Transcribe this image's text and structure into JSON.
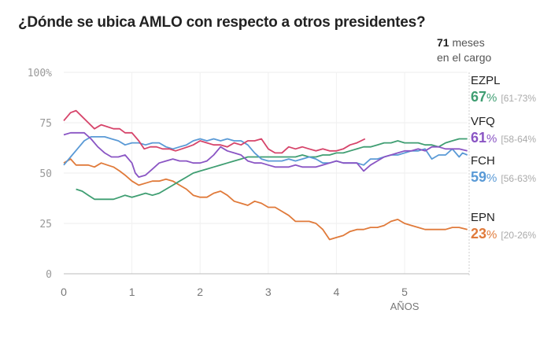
{
  "header": {
    "title": "¿Dónde se ubica AMLO con respecto a otros presidentes?",
    "months_value": "71",
    "months_label_1": "meses",
    "months_label_2": "en el cargo"
  },
  "colors": {
    "EZPL": "#3f9e72",
    "VFQ": "#8a55c4",
    "FCH": "#5a9ad6",
    "EPN": "#e07a3a",
    "AMLO": "#d6446a"
  },
  "legend": [
    {
      "name": "EZPL",
      "value": "67",
      "pct": "%",
      "range": "[61-73%"
    },
    {
      "name": "VFQ",
      "value": "61",
      "pct": "%",
      "range": "[58-64%"
    },
    {
      "name": "FCH",
      "value": "59",
      "pct": "%",
      "range": "[56-63%"
    },
    {
      "name": "EPN",
      "value": "23",
      "pct": "%",
      "range": "[20-26%"
    }
  ],
  "chart_data": {
    "type": "line",
    "title": "¿Dónde se ubica AMLO con respecto a otros presidentes?",
    "xlabel": "AÑOS",
    "ylabel": "",
    "xlim": [
      0,
      5.92
    ],
    "ylim": [
      0,
      100
    ],
    "x_ticks": [
      "0",
      "1",
      "2",
      "3",
      "4",
      "5"
    ],
    "y_ticks": [
      "0",
      "25",
      "50",
      "75",
      "100%"
    ],
    "y_tick_values": [
      0,
      25,
      50,
      75,
      100
    ],
    "grid": true,
    "legend_position": "right",
    "series": [
      {
        "name": "AMLO",
        "key": "AMLO",
        "x": [
          0,
          0.1,
          0.18,
          0.27,
          0.36,
          0.45,
          0.55,
          0.64,
          0.73,
          0.82,
          0.9,
          1.0,
          1.1,
          1.18,
          1.27,
          1.36,
          1.45,
          1.55,
          1.64,
          1.73,
          1.82,
          1.9,
          2.0,
          2.1,
          2.2,
          2.3,
          2.4,
          2.5,
          2.6,
          2.7,
          2.8,
          2.9,
          3.0,
          3.1,
          3.2,
          3.3,
          3.4,
          3.5,
          3.6,
          3.7,
          3.8,
          3.9,
          4.0,
          4.1,
          4.2,
          4.3,
          4.42
        ],
        "y": [
          76,
          80,
          81,
          78,
          75,
          72,
          74,
          73,
          72,
          72,
          70,
          70,
          66,
          62,
          63,
          63,
          62,
          62,
          61,
          62,
          63,
          64,
          66,
          65,
          64,
          64,
          63,
          65,
          64,
          66,
          66,
          67,
          62,
          60,
          60,
          63,
          62,
          63,
          62,
          61,
          62,
          61,
          61,
          62,
          64,
          65,
          67
        ]
      },
      {
        "name": "VFQ",
        "key": "VFQ",
        "x": [
          0,
          0.1,
          0.2,
          0.3,
          0.4,
          0.5,
          0.6,
          0.7,
          0.8,
          0.9,
          1.0,
          1.05,
          1.1,
          1.2,
          1.3,
          1.4,
          1.5,
          1.6,
          1.7,
          1.8,
          1.9,
          2.0,
          2.1,
          2.2,
          2.3,
          2.4,
          2.5,
          2.6,
          2.7,
          2.8,
          2.9,
          3.0,
          3.1,
          3.2,
          3.3,
          3.4,
          3.5,
          3.6,
          3.7,
          3.8,
          3.9,
          4.0,
          4.1,
          4.2,
          4.3,
          4.4,
          4.5,
          4.6,
          4.7,
          4.8,
          4.9,
          5.0,
          5.1,
          5.2,
          5.3,
          5.4,
          5.5,
          5.6,
          5.7,
          5.8,
          5.92
        ],
        "y": [
          69,
          70,
          70,
          70,
          67,
          63,
          60,
          58,
          58,
          59,
          55,
          50,
          48,
          49,
          52,
          55,
          56,
          57,
          56,
          56,
          55,
          55,
          56,
          59,
          63,
          61,
          60,
          59,
          56,
          55,
          55,
          54,
          53,
          53,
          53,
          54,
          53,
          53,
          53,
          54,
          55,
          56,
          55,
          55,
          55,
          51,
          54,
          56,
          58,
          59,
          60,
          61,
          61,
          62,
          61,
          63,
          63,
          62,
          62,
          62,
          61
        ]
      },
      {
        "name": "FCH",
        "key": "FCH",
        "x": [
          0,
          0.1,
          0.2,
          0.3,
          0.4,
          0.5,
          0.6,
          0.7,
          0.8,
          0.9,
          1.0,
          1.1,
          1.2,
          1.3,
          1.4,
          1.5,
          1.6,
          1.7,
          1.8,
          1.9,
          2.0,
          2.1,
          2.2,
          2.3,
          2.4,
          2.5,
          2.6,
          2.7,
          2.8,
          2.9,
          3.0,
          3.1,
          3.2,
          3.3,
          3.4,
          3.5,
          3.6,
          3.7,
          3.8,
          3.9,
          4.0,
          4.1,
          4.2,
          4.3,
          4.4,
          4.5,
          4.6,
          4.7,
          4.8,
          4.9,
          5.0,
          5.1,
          5.2,
          5.3,
          5.4,
          5.5,
          5.6,
          5.7,
          5.8,
          5.85,
          5.92
        ],
        "y": [
          54,
          58,
          62,
          66,
          68,
          68,
          68,
          67,
          66,
          64,
          65,
          65,
          64,
          65,
          65,
          63,
          62,
          63,
          64,
          66,
          67,
          66,
          67,
          66,
          67,
          66,
          66,
          64,
          60,
          57,
          56,
          56,
          56,
          57,
          56,
          57,
          58,
          57,
          55,
          55,
          56,
          55,
          55,
          55,
          54,
          57,
          57,
          58,
          59,
          59,
          60,
          61,
          61,
          62,
          57,
          59,
          59,
          62,
          58,
          60,
          59
        ]
      },
      {
        "name": "EZPL",
        "key": "EZPL",
        "x": [
          0.18,
          0.27,
          0.36,
          0.45,
          0.55,
          0.64,
          0.73,
          0.82,
          0.9,
          1.0,
          1.1,
          1.2,
          1.3,
          1.4,
          1.5,
          1.6,
          1.7,
          1.8,
          1.9,
          2.0,
          2.1,
          2.2,
          2.3,
          2.4,
          2.5,
          2.6,
          2.7,
          2.8,
          2.9,
          3.0,
          3.1,
          3.2,
          3.3,
          3.4,
          3.5,
          3.6,
          3.7,
          3.8,
          3.9,
          4.0,
          4.1,
          4.2,
          4.3,
          4.4,
          4.5,
          4.6,
          4.7,
          4.8,
          4.9,
          5.0,
          5.1,
          5.2,
          5.3,
          5.4,
          5.5,
          5.6,
          5.7,
          5.8,
          5.92
        ],
        "y": [
          42,
          41,
          39,
          37,
          37,
          37,
          37,
          38,
          39,
          38,
          39,
          40,
          39,
          40,
          42,
          44,
          46,
          48,
          50,
          51,
          52,
          53,
          54,
          55,
          56,
          57,
          58,
          58,
          58,
          58,
          58,
          58,
          58,
          58,
          59,
          58,
          58,
          59,
          59,
          60,
          60,
          61,
          62,
          63,
          63,
          64,
          65,
          65,
          66,
          65,
          65,
          65,
          64,
          64,
          63,
          65,
          66,
          67,
          67
        ]
      },
      {
        "name": "EPN",
        "key": "EPN",
        "x": [
          0,
          0.1,
          0.18,
          0.27,
          0.36,
          0.45,
          0.55,
          0.64,
          0.73,
          0.82,
          0.9,
          1.0,
          1.1,
          1.2,
          1.3,
          1.4,
          1.5,
          1.6,
          1.7,
          1.8,
          1.9,
          2.0,
          2.1,
          2.2,
          2.3,
          2.4,
          2.5,
          2.6,
          2.7,
          2.8,
          2.9,
          3.0,
          3.1,
          3.2,
          3.3,
          3.4,
          3.5,
          3.6,
          3.7,
          3.8,
          3.9,
          4.0,
          4.1,
          4.2,
          4.3,
          4.4,
          4.5,
          4.6,
          4.7,
          4.8,
          4.9,
          5.0,
          5.1,
          5.2,
          5.3,
          5.4,
          5.5,
          5.6,
          5.7,
          5.8,
          5.92
        ],
        "y": [
          55,
          57,
          54,
          54,
          54,
          53,
          55,
          54,
          53,
          51,
          49,
          46,
          44,
          45,
          46,
          46,
          47,
          46,
          44,
          42,
          39,
          38,
          38,
          40,
          41,
          39,
          36,
          35,
          34,
          36,
          35,
          33,
          33,
          31,
          29,
          26,
          26,
          26,
          25,
          22,
          17,
          18,
          19,
          21,
          22,
          22,
          23,
          23,
          24,
          26,
          27,
          25,
          24,
          23,
          22,
          22,
          22,
          22,
          23,
          23,
          22
        ]
      }
    ]
  }
}
